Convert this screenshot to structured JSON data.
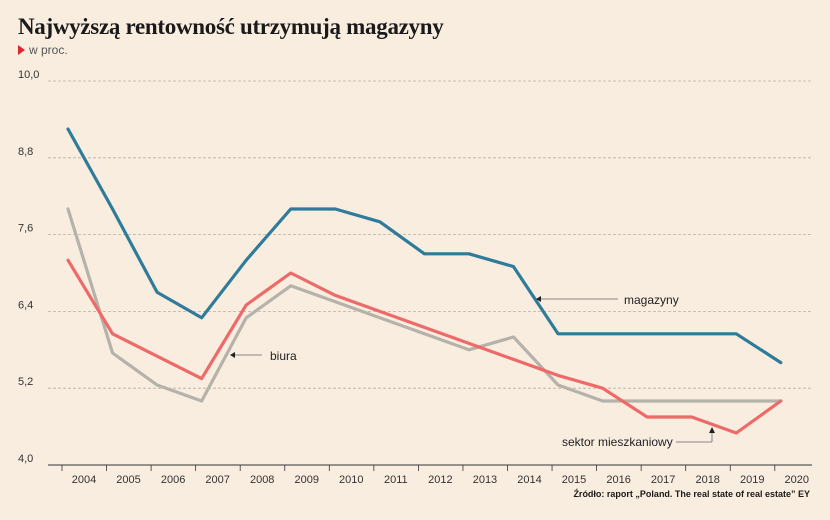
{
  "title": "Najwyższą rentowność utrzymują magazyny",
  "subtitle": "w proc.",
  "source": "Źródło: raport „Poland. The real state of real estate” EY",
  "chart_data": {
    "type": "line",
    "title": "Najwyższą rentowność utrzymują magazyny",
    "ylabel": "w proc.",
    "ylim": [
      4.0,
      10.0
    ],
    "yticks": [
      "4,0",
      "5,2",
      "6,4",
      "7,6",
      "8,8",
      "10,0"
    ],
    "ytick_values": [
      4.0,
      5.2,
      6.4,
      7.6,
      8.8,
      10.0
    ],
    "categories": [
      "2004",
      "2005",
      "2006",
      "2007",
      "2008",
      "2009",
      "2010",
      "2011",
      "2012",
      "2013",
      "2014",
      "2015",
      "2016",
      "2017",
      "2018",
      "2019",
      "2020"
    ],
    "grid": true,
    "legend": "inline labels",
    "series": [
      {
        "name": "magazyny",
        "color": "#2e7b9a",
        "values": [
          9.25,
          8.0,
          6.7,
          6.3,
          7.2,
          8.0,
          8.0,
          7.8,
          7.3,
          7.3,
          7.1,
          6.05,
          6.05,
          6.05,
          6.05,
          6.05,
          5.6
        ]
      },
      {
        "name": "biura",
        "color": "#ee6a68",
        "values": [
          7.2,
          6.05,
          5.7,
          5.35,
          6.5,
          7.0,
          6.65,
          6.4,
          6.15,
          5.9,
          5.65,
          5.4,
          5.2,
          4.75,
          4.75,
          4.5,
          5.0
        ]
      },
      {
        "name": "sektor mieszkaniowy",
        "color": "#b5b2aa",
        "values": [
          8.0,
          5.75,
          5.25,
          5.0,
          6.3,
          6.8,
          6.55,
          6.3,
          6.05,
          5.8,
          6.0,
          5.25,
          5.0,
          5.0,
          5.0,
          5.0,
          5.0
        ]
      }
    ]
  }
}
